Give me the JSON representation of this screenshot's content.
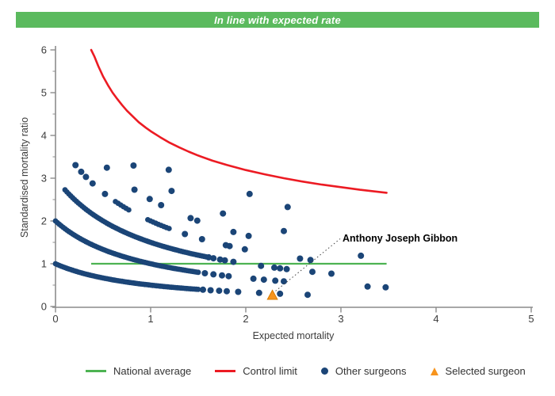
{
  "header": {
    "title": "In line with expected rate",
    "bg_color": "#5bba5e",
    "text_color": "#ffffff"
  },
  "colors": {
    "navy_points": "#1b4577",
    "control_limit_red": "#ec1b23",
    "national_average_green": "#4db352",
    "selected_orange": "#f7941d",
    "selected_orange_edge": "#d97b00",
    "axis_gray": "#8c8c8c",
    "tick_text": "#3c3c3c",
    "annotation_text": "#000000",
    "annotation_line": "#444444"
  },
  "chart_data": {
    "type": "scatter",
    "title": "In line with expected rate",
    "xlabel": "Expected mortality",
    "ylabel": "Standardised mortality ratio",
    "xlim": [
      0,
      5
    ],
    "ylim": [
      0,
      6
    ],
    "x_ticks": [
      "0",
      "1",
      "2",
      "3",
      "4",
      "5"
    ],
    "y_ticks": [
      "0",
      "1",
      "2",
      "3",
      "4",
      "5",
      "6"
    ],
    "y_minor_tick_step": 0.5,
    "grid": false,
    "legend_position": "bottom",
    "marker_size_px": 8,
    "point_model": "Every surgeon marker lies on a curve SMR = deaths / (expected + 1) for integer deaths; low death-count curves are densely packed bands of overlapping markers.",
    "dense_bands": [
      {
        "deaths": 1,
        "e_start": 0.0,
        "e_end": 1.5,
        "step": 0.02
      },
      {
        "deaths": 2,
        "e_start": 0.0,
        "e_end": 1.5,
        "step": 0.02
      },
      {
        "deaths": 3,
        "e_start": 0.1,
        "e_end": 1.58,
        "step": 0.02
      },
      {
        "deaths": 4,
        "e_start": 0.63,
        "e_end": 0.77,
        "step": 0.028
      },
      {
        "deaths": 4,
        "e_start": 0.97,
        "e_end": 1.22,
        "step": 0.028
      }
    ],
    "dot_points": {
      "1": [
        1.55,
        1.63,
        1.72,
        1.8,
        1.92,
        2.14,
        2.36,
        2.65
      ],
      "2": [
        1.57,
        1.66,
        1.75,
        1.82,
        2.08,
        2.19,
        2.31,
        2.4,
        3.28,
        3.47
      ],
      "3": [
        1.61,
        1.66,
        1.73,
        1.78,
        1.87,
        2.16,
        2.3,
        2.36,
        2.43,
        2.7,
        2.9
      ],
      "4": [
        0.21,
        0.27,
        0.32,
        0.39,
        0.52,
        1.36,
        1.54,
        1.79,
        1.83,
        1.99,
        2.57,
        2.68
      ],
      "5": [
        0.54,
        0.83,
        0.99,
        1.11,
        1.42,
        1.49,
        1.87,
        2.03,
        3.21
      ],
      "6": [
        0.82,
        1.22,
        1.76,
        2.4
      ],
      "7": [
        1.19
      ],
      "8": [
        2.04,
        2.44
      ]
    },
    "national_average": {
      "label": "National average",
      "value": 1.0,
      "e_start": 0.375,
      "e_end": 3.48
    },
    "control_limit": {
      "label": "Control limit",
      "formula": "SMR = 1 + 3.1 / sqrt(E)",
      "points": [
        [
          0.375,
          6.0
        ],
        [
          0.41,
          5.84
        ],
        [
          0.45,
          5.62
        ],
        [
          0.5,
          5.38
        ],
        [
          0.55,
          5.18
        ],
        [
          0.6,
          5.0
        ],
        [
          0.65,
          4.85
        ],
        [
          0.7,
          4.71
        ],
        [
          0.75,
          4.58
        ],
        [
          0.8,
          4.47
        ],
        [
          0.875,
          4.31
        ],
        [
          0.95,
          4.18
        ],
        [
          1.0,
          4.1
        ],
        [
          1.1,
          3.96
        ],
        [
          1.2,
          3.83
        ],
        [
          1.3,
          3.72
        ],
        [
          1.4,
          3.62
        ],
        [
          1.5,
          3.53
        ],
        [
          1.65,
          3.41
        ],
        [
          1.8,
          3.31
        ],
        [
          2.0,
          3.19
        ],
        [
          2.2,
          3.09
        ],
        [
          2.4,
          3.0
        ],
        [
          2.6,
          2.92
        ],
        [
          2.8,
          2.85
        ],
        [
          3.0,
          2.79
        ],
        [
          3.2,
          2.73
        ],
        [
          3.48,
          2.66
        ]
      ]
    },
    "selected_surgeon": {
      "label": "Anthony Joseph Gibbon",
      "expected": 2.28,
      "smr": 0.27
    }
  },
  "legend": {
    "items": [
      {
        "label": "National average",
        "swatch": "line",
        "color": "#4db352"
      },
      {
        "label": "Control limit",
        "swatch": "line",
        "color": "#ec1b23"
      },
      {
        "label": "Other surgeons",
        "swatch": "dot",
        "color": "#1b4577"
      },
      {
        "label": "Selected surgeon",
        "swatch": "triangle",
        "color": "#f7941d"
      }
    ]
  }
}
